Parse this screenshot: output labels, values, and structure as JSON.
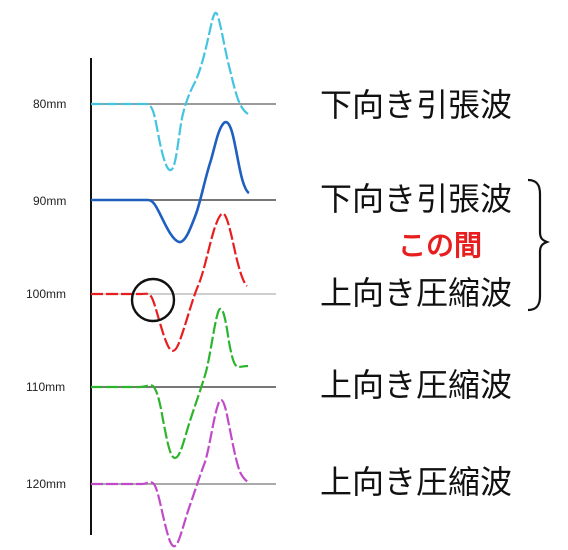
{
  "rows": [
    {
      "label": "80mm",
      "color": "#44c4e0"
    },
    {
      "label": "90mm",
      "color": "#1f5fc0"
    },
    {
      "label": "100mm",
      "color": "#e81e1e"
    },
    {
      "label": "110mm",
      "color": "#2db42d"
    },
    {
      "label": "120mm",
      "color": "#c04ac8"
    }
  ],
  "wave_labels": {
    "w80": "下向き引張波",
    "w90": "下向き引張波",
    "note": "この間",
    "w100": "上向き圧縮波",
    "w110": "上向き圧縮波",
    "w120": "上向き圧縮波"
  },
  "colors": {
    "note": "#e81e1e",
    "baseline": "#999999",
    "axis": "#111111",
    "circle": "#111111"
  }
}
